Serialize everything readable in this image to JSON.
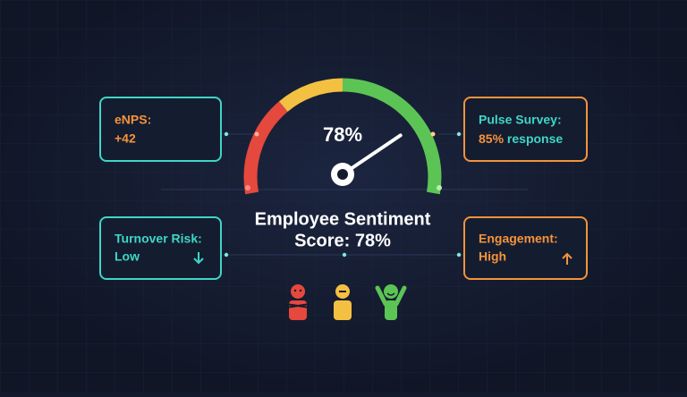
{
  "gauge": {
    "value": 78,
    "label": "78%"
  },
  "title": {
    "line1": "Employee Sentiment",
    "line2": "Score: 78%"
  },
  "cards": {
    "enps": {
      "label": "eNPS:",
      "value": "+42"
    },
    "pulse": {
      "label": "Pulse Survey:",
      "value": "85%",
      "suffix": "response"
    },
    "turnover": {
      "label": "Turnover Risk:",
      "value": "Low"
    },
    "engagement": {
      "label": "Engagement:",
      "value": "High"
    }
  }
}
